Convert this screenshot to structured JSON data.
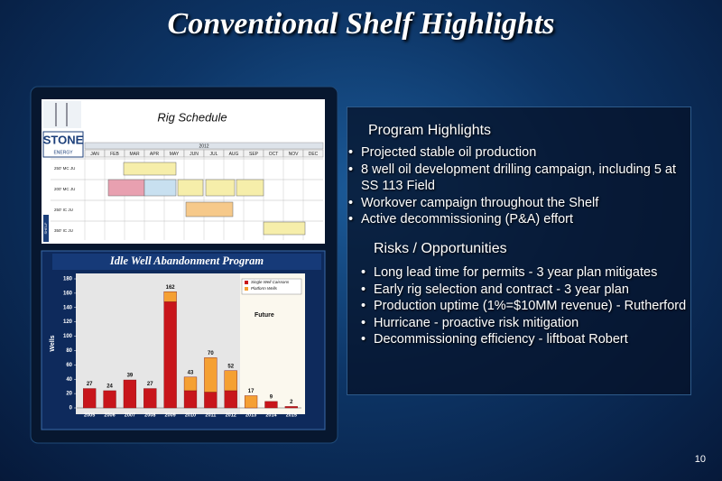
{
  "title": "Conventional Shelf Highlights",
  "page_number": "10",
  "rig_schedule": {
    "title": "Rig Schedule",
    "logo": "STONE",
    "logo_sub": "ENERGY",
    "year": "2012",
    "months": [
      "JAN",
      "FEB",
      "MAR",
      "APR",
      "MAY",
      "JUN",
      "JUL",
      "AUG",
      "SEP",
      "OCT",
      "NOV",
      "DEC"
    ],
    "rows": [
      "250' MC JU",
      "200' MC JU",
      "250' IC JU",
      "350' IC JU"
    ],
    "side_label": "SHELF"
  },
  "program_highlights": {
    "heading": "Program Highlights",
    "items": [
      "Projected stable oil production",
      "8 well oil development drilling campaign, including 5 at SS 113 Field",
      "Workover campaign throughout the Shelf",
      "Active decommissioning (P&A) effort"
    ]
  },
  "risks": {
    "heading": "Risks / Opportunities",
    "items": [
      "Long lead time for permits - 3 year plan mitigates",
      "Early rig selection and contract - 3 year plan",
      "Production uptime (1%=$10MM revenue) - Rutherford",
      "Hurricane - proactive risk mitigation",
      "Decommissioning efficiency - liftboat Robert"
    ]
  },
  "chart_data": {
    "type": "stacked_bar",
    "title": "Idle Well Abandonment Program",
    "y_label": "Wells",
    "annotation": "Future",
    "categories": [
      "2005",
      "2006",
      "2007",
      "2008",
      "2009",
      "2010",
      "2011",
      "2012",
      "2013",
      "2014",
      "2015"
    ],
    "series": [
      {
        "name": "Single Well Caissons",
        "color": "#c8151b",
        "values": [
          27,
          24,
          39,
          27,
          148,
          24,
          22,
          24,
          0,
          9,
          2
        ]
      },
      {
        "name": "Platform Wells",
        "color": "#f5a033",
        "values": [
          0,
          0,
          0,
          0,
          14,
          19,
          48,
          28,
          17,
          0,
          0
        ]
      }
    ],
    "totals": [
      27,
      24,
      39,
      27,
      162,
      43,
      70,
      52,
      17,
      9,
      2
    ],
    "ylim": [
      0,
      180
    ],
    "yticks": [
      0,
      20,
      40,
      60,
      80,
      100,
      120,
      140,
      160,
      180
    ],
    "grid": false
  }
}
